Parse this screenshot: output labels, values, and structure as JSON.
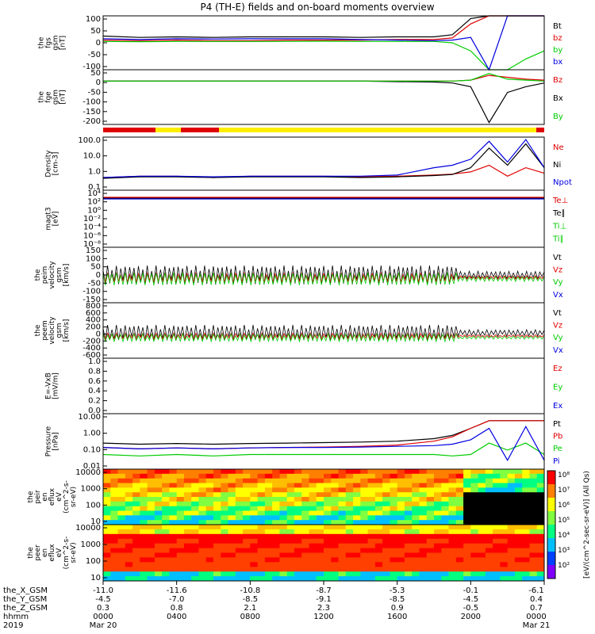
{
  "title": "P4 (TH-E) fields and on-board moments overview",
  "colors": {
    "black": "#000000",
    "red": "#e00000",
    "green": "#00cc00",
    "blue": "#0000e0",
    "yellow": "#ffee00"
  },
  "panels": [
    {
      "id": "fgs-gsm",
      "ylabel": [
        "the",
        "fgs",
        "gsm",
        "[nT]"
      ],
      "yticks": [
        "100",
        "50",
        "0",
        "-50",
        "-100"
      ],
      "legend": [
        {
          "text": "Bt",
          "color": "black"
        },
        {
          "text": "bz",
          "color": "red"
        },
        {
          "text": "by",
          "color": "green"
        },
        {
          "text": "bx",
          "color": "blue"
        }
      ]
    },
    {
      "id": "fge-gsm",
      "ylabel": [
        "the",
        "fge",
        "gsm",
        "[nT]"
      ],
      "yticks": [
        "50",
        "0",
        "-50",
        "-100",
        "-150",
        "-200"
      ],
      "legend": [
        {
          "text": "Bz",
          "color": "red"
        },
        {
          "text": "Bx",
          "color": "black"
        },
        {
          "text": "By",
          "color": "green"
        }
      ]
    },
    {
      "id": "density",
      "ylabel": [
        "Density",
        "[cm-3]"
      ],
      "yticks": [
        "100.0",
        "10.0",
        "1.0",
        "0.1"
      ],
      "legend": [
        {
          "text": "Ne",
          "color": "red"
        },
        {
          "text": "Ni",
          "color": "black"
        },
        {
          "text": "Npot",
          "color": "blue"
        }
      ]
    },
    {
      "id": "temperature",
      "ylabel": [
        "magt3",
        "[eV]"
      ],
      "yticks": [
        "10⁴",
        "10²",
        "10⁰",
        "10⁻²",
        "10⁻⁴",
        "10⁻⁶",
        "10⁻⁸"
      ],
      "legend": [
        {
          "text": "Te⊥",
          "color": "red"
        },
        {
          "text": "Te∥",
          "color": "black"
        },
        {
          "text": "Ti⊥",
          "color": "green"
        },
        {
          "text": "Ti∥",
          "color": "green"
        }
      ]
    },
    {
      "id": "peim-velocity",
      "ylabel": [
        "the",
        "peim",
        "velocity",
        "gsm",
        "[km/s]"
      ],
      "yticks": [
        "150",
        "100",
        "50",
        "0",
        "-50",
        "-100",
        "-150"
      ],
      "legend": [
        {
          "text": "Vt",
          "color": "black"
        },
        {
          "text": "Vz",
          "color": "red"
        },
        {
          "text": "Vy",
          "color": "green"
        },
        {
          "text": "Vx",
          "color": "blue"
        }
      ]
    },
    {
      "id": "peem-velocity",
      "ylabel": [
        "the",
        "peem",
        "velocity",
        "gsm",
        "[km/s]"
      ],
      "yticks": [
        "800",
        "600",
        "400",
        "200",
        "0",
        "-200",
        "-400",
        "-600"
      ],
      "legend": [
        {
          "text": "Vt",
          "color": "black"
        },
        {
          "text": "Vz",
          "color": "red"
        },
        {
          "text": "Vy",
          "color": "green"
        },
        {
          "text": "Vx",
          "color": "blue"
        }
      ]
    },
    {
      "id": "efield",
      "ylabel": [
        "E=-VxB",
        "[mV/m]"
      ],
      "yticks": [
        "1.0",
        "0.8",
        "0.6",
        "0.4",
        "0.2",
        "0.0"
      ],
      "legend": [
        {
          "text": "Ez",
          "color": "red"
        },
        {
          "text": "Ey",
          "color": "green"
        },
        {
          "text": "Ex",
          "color": "blue"
        }
      ]
    },
    {
      "id": "pressure",
      "ylabel": [
        "Pressure",
        "[nPa]"
      ],
      "yticks": [
        "10.00",
        "1.00",
        "0.10",
        "0.01"
      ],
      "legend": [
        {
          "text": "Pt",
          "color": "black"
        },
        {
          "text": "Pb",
          "color": "red"
        },
        {
          "text": "Pe",
          "color": "green"
        },
        {
          "text": "Pi",
          "color": "blue"
        }
      ]
    },
    {
      "id": "peir-eflux",
      "ylabel": [
        "the",
        "peir",
        "en",
        "eflux",
        "eV",
        "(cm^2-s-",
        "sr-eV)"
      ],
      "yticks": [
        "10000",
        "1000",
        "100",
        "10"
      ]
    },
    {
      "id": "peer-eflux",
      "ylabel": [
        "the",
        "peer",
        "en",
        "eflux",
        "eV",
        "(cm^2-s-",
        "sr-eV)"
      ],
      "yticks": [
        "10000",
        "1000",
        "100",
        "10"
      ]
    }
  ],
  "colorbar": {
    "label": "[eV/(cm^2-sec-sr-eV)] (All Qs)",
    "ticks": [
      "10⁸",
      "10⁷",
      "10⁶",
      "10⁵",
      "10⁴",
      "10³",
      "10²"
    ]
  },
  "xaxis": {
    "row_labels": [
      "the_X_GSM",
      "the_Y_GSM",
      "the_Z_GSM",
      "hhmm",
      "2019"
    ],
    "ticks": [
      {
        "x": "-11.0",
        "y": "-4.5",
        "z": "0.3",
        "hhmm": "0000",
        "date": "Mar 20"
      },
      {
        "x": "-11.6",
        "y": "-7.0",
        "z": "0.8",
        "hhmm": "0400",
        "date": ""
      },
      {
        "x": "-10.8",
        "y": "-8.5",
        "z": "2.1",
        "hhmm": "0800",
        "date": ""
      },
      {
        "x": "-8.7",
        "y": "-9.1",
        "z": "2.3",
        "hhmm": "1200",
        "date": ""
      },
      {
        "x": "-5.3",
        "y": "-8.5",
        "z": "0.9",
        "hhmm": "1600",
        "date": ""
      },
      {
        "x": "-0.1",
        "y": "-4.5",
        "z": "-0.5",
        "hhmm": "2000",
        "date": ""
      },
      {
        "x": "-6.1",
        "y": "0.4",
        "z": "0.7",
        "hhmm": "0000",
        "date": "Mar 21"
      }
    ]
  },
  "chart_data": {
    "type": "line",
    "title": "P4 (TH-E) fields and on-board moments overview",
    "x_hours": [
      0,
      2,
      4,
      6,
      8,
      10,
      12,
      14,
      16,
      18,
      19,
      20,
      21,
      22,
      23,
      24
    ],
    "series": [
      {
        "name": "Bt",
        "panel": "fgs-gsm",
        "values": [
          25,
          20,
          22,
          20,
          22,
          22,
          22,
          20,
          22,
          22,
          30,
          90,
          100,
          100,
          100,
          100
        ]
      },
      {
        "name": "bz",
        "panel": "fgs-gsm",
        "values": [
          10,
          8,
          10,
          8,
          8,
          10,
          10,
          10,
          12,
          12,
          18,
          70,
          100,
          100,
          100,
          100
        ]
      },
      {
        "name": "by",
        "panel": "fgs-gsm",
        "values": [
          5,
          4,
          5,
          5,
          5,
          5,
          6,
          5,
          5,
          5,
          0,
          -30,
          -100,
          -100,
          -60,
          -30
        ]
      },
      {
        "name": "bx",
        "panel": "fgs-gsm",
        "values": [
          15,
          12,
          15,
          14,
          15,
          15,
          15,
          12,
          10,
          8,
          10,
          20,
          -100,
          100,
          100,
          100
        ]
      },
      {
        "name": "Bz",
        "panel": "fge-gsm",
        "values": [
          0,
          0,
          0,
          0,
          0,
          0,
          0,
          0,
          0,
          0,
          0,
          5,
          30,
          20,
          10,
          5
        ]
      },
      {
        "name": "Bx",
        "panel": "fge-gsm",
        "values": [
          0,
          0,
          0,
          0,
          0,
          0,
          0,
          0,
          -3,
          -5,
          -10,
          -30,
          -220,
          -60,
          -30,
          -10
        ]
      },
      {
        "name": "By",
        "panel": "fge-gsm",
        "values": [
          0,
          0,
          0,
          0,
          0,
          0,
          0,
          0,
          0,
          0,
          0,
          5,
          40,
          10,
          5,
          0
        ]
      },
      {
        "name": "Ne",
        "panel": "density",
        "values": [
          0.4,
          0.5,
          0.5,
          0.4,
          0.5,
          0.5,
          0.5,
          0.45,
          0.5,
          0.6,
          0.7,
          1.0,
          3.0,
          0.5,
          2.0,
          0.8
        ]
      },
      {
        "name": "Ni",
        "panel": "density",
        "values": [
          0.35,
          0.45,
          0.45,
          0.4,
          0.45,
          0.45,
          0.45,
          0.4,
          0.45,
          0.55,
          0.65,
          2.0,
          50,
          3,
          100,
          2
        ]
      },
      {
        "name": "Npot",
        "panel": "density",
        "values": [
          0.4,
          0.5,
          0.5,
          0.45,
          0.5,
          0.5,
          0.5,
          0.5,
          0.6,
          2.0,
          3.0,
          8,
          150,
          5,
          200,
          2
        ]
      },
      {
        "name": "Pt",
        "panel": "pressure",
        "values": [
          0.3,
          0.25,
          0.28,
          0.25,
          0.28,
          0.3,
          0.32,
          0.35,
          0.4,
          0.6,
          1.0,
          3,
          10,
          10,
          10,
          10
        ]
      },
      {
        "name": "Pb",
        "panel": "pressure",
        "values": [
          0.15,
          0.12,
          0.14,
          0.12,
          0.14,
          0.15,
          0.16,
          0.18,
          0.22,
          0.4,
          0.8,
          3,
          10,
          10,
          10,
          10
        ]
      },
      {
        "name": "Pe",
        "panel": "pressure",
        "values": [
          0.05,
          0.04,
          0.05,
          0.04,
          0.05,
          0.05,
          0.05,
          0.05,
          0.05,
          0.05,
          0.04,
          0.05,
          0.3,
          0.1,
          0.3,
          0.05
        ]
      },
      {
        "name": "Pi",
        "panel": "pressure",
        "values": [
          0.15,
          0.12,
          0.14,
          0.12,
          0.14,
          0.15,
          0.15,
          0.16,
          0.18,
          0.2,
          0.25,
          0.5,
          3,
          0.02,
          4,
          0.02
        ]
      }
    ]
  }
}
